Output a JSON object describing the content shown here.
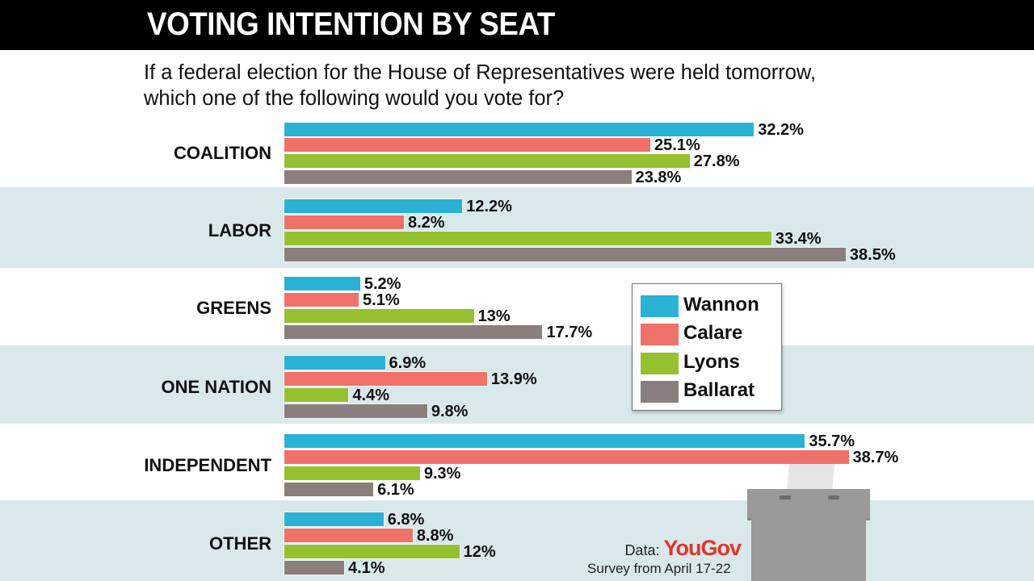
{
  "header": {
    "title": "VOTING INTENTION BY SEAT"
  },
  "question": "If a federal election for the House of Representatives were held tomorrow, which one of the following would you vote for?",
  "legend": {
    "items": [
      {
        "label": "Wannon",
        "color": "#29b2d3"
      },
      {
        "label": "Calare",
        "color": "#f0716a"
      },
      {
        "label": "Lyons",
        "color": "#95c12f"
      },
      {
        "label": "Ballarat",
        "color": "#8b7f7d"
      }
    ]
  },
  "categories": [
    {
      "label": "COALITION",
      "values": [
        "32.2%",
        "25.1%",
        "27.8%",
        "23.8%"
      ]
    },
    {
      "label": "LABOR",
      "values": [
        "12.2%",
        "8.2%",
        "33.4%",
        "38.5%"
      ]
    },
    {
      "label": "GREENS",
      "values": [
        "5.2%",
        "5.1%",
        "13%",
        "17.7%"
      ]
    },
    {
      "label": "ONE NATION",
      "values": [
        "6.9%",
        "13.9%",
        "4.4%",
        "9.8%"
      ]
    },
    {
      "label": "INDEPENDENT",
      "values": [
        "35.7%",
        "38.7%",
        "9.3%",
        "6.1%"
      ]
    },
    {
      "label": "OTHER",
      "values": [
        "6.8%",
        "8.8%",
        "12%",
        "4.1%"
      ]
    }
  ],
  "source": {
    "prefix": "Data:",
    "brand": "YouGov",
    "survey": "Survey from April 17-22"
  },
  "chart_data": {
    "type": "bar",
    "orientation": "horizontal",
    "title": "VOTING INTENTION BY SEAT",
    "subtitle": "If a federal election for the House of Representatives were held tomorrow, which one of the following would you vote for?",
    "categories": [
      "COALITION",
      "LABOR",
      "GREENS",
      "ONE NATION",
      "INDEPENDENT",
      "OTHER"
    ],
    "series": [
      {
        "name": "Wannon",
        "color": "#29b2d3",
        "values": [
          32.2,
          12.2,
          5.2,
          6.9,
          35.7,
          6.8
        ]
      },
      {
        "name": "Calare",
        "color": "#f0716a",
        "values": [
          25.1,
          8.2,
          5.1,
          13.9,
          38.7,
          8.8
        ]
      },
      {
        "name": "Lyons",
        "color": "#95c12f",
        "values": [
          27.8,
          33.4,
          13,
          4.4,
          9.3,
          12
        ]
      },
      {
        "name": "Ballarat",
        "color": "#8b7f7d",
        "values": [
          23.8,
          38.5,
          17.7,
          9.8,
          6.1,
          4.1
        ]
      }
    ],
    "xlabel": "",
    "ylabel": "",
    "unit": "%",
    "grid": false,
    "legend_position": "inside-right",
    "source": "Data: YouGov. Survey from April 17-22"
  }
}
